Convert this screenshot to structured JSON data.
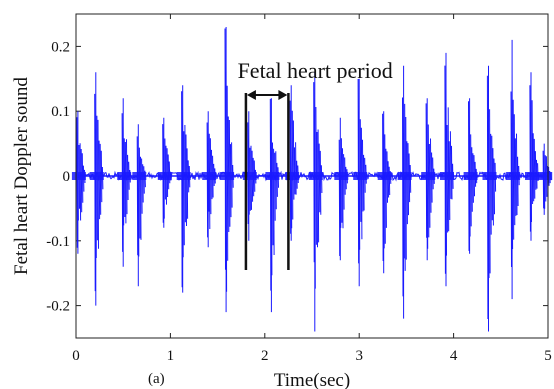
{
  "chart_data": {
    "type": "line",
    "title": "",
    "xlabel": "Time(sec)",
    "ylabel": "Fetal heart Doppler sound",
    "xlim": [
      0,
      5
    ],
    "ylim": [
      -0.25,
      0.25
    ],
    "xticks": [
      0,
      1,
      2,
      3,
      4,
      5
    ],
    "xtick_labels": [
      "0",
      "1",
      "2",
      "3",
      "4",
      "5"
    ],
    "yticks": [
      0.2,
      0.1,
      0,
      -0.1,
      -0.2
    ],
    "ytick_labels": [
      "0.2",
      "0.1",
      "0",
      "-0.1",
      "-0.2"
    ],
    "grid": false,
    "legend": "none",
    "series_color": "#1a1aff",
    "beats": [
      {
        "t": 0.02,
        "peak": 0.1,
        "trough": -0.12
      },
      {
        "t": 0.21,
        "peak": 0.16,
        "trough": -0.2
      },
      {
        "t": 0.5,
        "peak": 0.12,
        "trough": -0.14
      },
      {
        "t": 0.66,
        "peak": 0.08,
        "trough": -0.17
      },
      {
        "t": 0.93,
        "peak": 0.09,
        "trough": -0.08
      },
      {
        "t": 1.13,
        "peak": 0.14,
        "trough": -0.18
      },
      {
        "t": 1.4,
        "peak": 0.1,
        "trough": -0.11
      },
      {
        "t": 1.59,
        "peak": 0.23,
        "trough": -0.21
      },
      {
        "t": 1.83,
        "peak": 0.1,
        "trough": -0.1
      },
      {
        "t": 2.07,
        "peak": 0.12,
        "trough": -0.21
      },
      {
        "t": 2.28,
        "peak": 0.14,
        "trough": -0.1
      },
      {
        "t": 2.53,
        "peak": 0.16,
        "trough": -0.24
      },
      {
        "t": 2.8,
        "peak": 0.09,
        "trough": -0.13
      },
      {
        "t": 3.0,
        "peak": 0.15,
        "trough": -0.17
      },
      {
        "t": 3.26,
        "peak": 0.1,
        "trough": -0.15
      },
      {
        "t": 3.47,
        "peak": 0.17,
        "trough": -0.22
      },
      {
        "t": 3.72,
        "peak": 0.12,
        "trough": -0.13
      },
      {
        "t": 3.92,
        "peak": 0.19,
        "trough": -0.17
      },
      {
        "t": 4.17,
        "peak": 0.12,
        "trough": -0.12
      },
      {
        "t": 4.37,
        "peak": 0.17,
        "trough": -0.24
      },
      {
        "t": 4.62,
        "peak": 0.21,
        "trough": -0.19
      },
      {
        "t": 4.82,
        "peak": 0.16,
        "trough": -0.1
      },
      {
        "t": 4.96,
        "peak": 0.05,
        "trough": -0.06
      }
    ],
    "annotations": [
      {
        "text": "Fetal heart period",
        "bracket_start": 1.8,
        "bracket_end": 2.25,
        "bracket_bottom": -0.145,
        "arrow_level": 0.125
      }
    ],
    "caption": "(a)"
  }
}
